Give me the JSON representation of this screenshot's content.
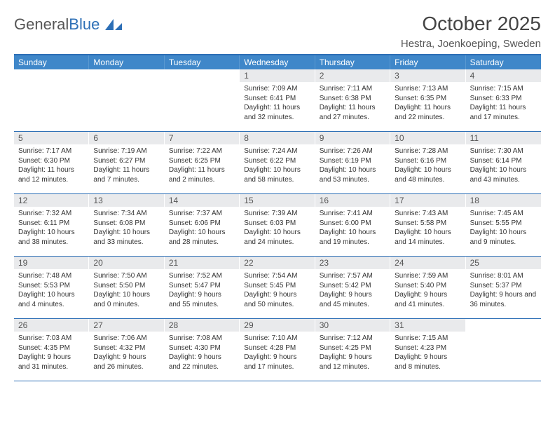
{
  "logo": {
    "text_general": "General",
    "text_blue": "Blue"
  },
  "title": "October 2025",
  "location": "Hestra, Joenkoeping, Sweden",
  "colors": {
    "header_bg": "#3f87c9",
    "header_border_top": "#2d6fb6",
    "week_border": "#2d6fb6",
    "daynum_bg": "#e9eaec",
    "text": "#333333"
  },
  "days_of_week": [
    "Sunday",
    "Monday",
    "Tuesday",
    "Wednesday",
    "Thursday",
    "Friday",
    "Saturday"
  ],
  "weeks": [
    [
      {
        "n": "",
        "sr": "",
        "ss": "",
        "dl": ""
      },
      {
        "n": "",
        "sr": "",
        "ss": "",
        "dl": ""
      },
      {
        "n": "",
        "sr": "",
        "ss": "",
        "dl": ""
      },
      {
        "n": "1",
        "sr": "Sunrise: 7:09 AM",
        "ss": "Sunset: 6:41 PM",
        "dl": "Daylight: 11 hours and 32 minutes."
      },
      {
        "n": "2",
        "sr": "Sunrise: 7:11 AM",
        "ss": "Sunset: 6:38 PM",
        "dl": "Daylight: 11 hours and 27 minutes."
      },
      {
        "n": "3",
        "sr": "Sunrise: 7:13 AM",
        "ss": "Sunset: 6:35 PM",
        "dl": "Daylight: 11 hours and 22 minutes."
      },
      {
        "n": "4",
        "sr": "Sunrise: 7:15 AM",
        "ss": "Sunset: 6:33 PM",
        "dl": "Daylight: 11 hours and 17 minutes."
      }
    ],
    [
      {
        "n": "5",
        "sr": "Sunrise: 7:17 AM",
        "ss": "Sunset: 6:30 PM",
        "dl": "Daylight: 11 hours and 12 minutes."
      },
      {
        "n": "6",
        "sr": "Sunrise: 7:19 AM",
        "ss": "Sunset: 6:27 PM",
        "dl": "Daylight: 11 hours and 7 minutes."
      },
      {
        "n": "7",
        "sr": "Sunrise: 7:22 AM",
        "ss": "Sunset: 6:25 PM",
        "dl": "Daylight: 11 hours and 2 minutes."
      },
      {
        "n": "8",
        "sr": "Sunrise: 7:24 AM",
        "ss": "Sunset: 6:22 PM",
        "dl": "Daylight: 10 hours and 58 minutes."
      },
      {
        "n": "9",
        "sr": "Sunrise: 7:26 AM",
        "ss": "Sunset: 6:19 PM",
        "dl": "Daylight: 10 hours and 53 minutes."
      },
      {
        "n": "10",
        "sr": "Sunrise: 7:28 AM",
        "ss": "Sunset: 6:16 PM",
        "dl": "Daylight: 10 hours and 48 minutes."
      },
      {
        "n": "11",
        "sr": "Sunrise: 7:30 AM",
        "ss": "Sunset: 6:14 PM",
        "dl": "Daylight: 10 hours and 43 minutes."
      }
    ],
    [
      {
        "n": "12",
        "sr": "Sunrise: 7:32 AM",
        "ss": "Sunset: 6:11 PM",
        "dl": "Daylight: 10 hours and 38 minutes."
      },
      {
        "n": "13",
        "sr": "Sunrise: 7:34 AM",
        "ss": "Sunset: 6:08 PM",
        "dl": "Daylight: 10 hours and 33 minutes."
      },
      {
        "n": "14",
        "sr": "Sunrise: 7:37 AM",
        "ss": "Sunset: 6:06 PM",
        "dl": "Daylight: 10 hours and 28 minutes."
      },
      {
        "n": "15",
        "sr": "Sunrise: 7:39 AM",
        "ss": "Sunset: 6:03 PM",
        "dl": "Daylight: 10 hours and 24 minutes."
      },
      {
        "n": "16",
        "sr": "Sunrise: 7:41 AM",
        "ss": "Sunset: 6:00 PM",
        "dl": "Daylight: 10 hours and 19 minutes."
      },
      {
        "n": "17",
        "sr": "Sunrise: 7:43 AM",
        "ss": "Sunset: 5:58 PM",
        "dl": "Daylight: 10 hours and 14 minutes."
      },
      {
        "n": "18",
        "sr": "Sunrise: 7:45 AM",
        "ss": "Sunset: 5:55 PM",
        "dl": "Daylight: 10 hours and 9 minutes."
      }
    ],
    [
      {
        "n": "19",
        "sr": "Sunrise: 7:48 AM",
        "ss": "Sunset: 5:53 PM",
        "dl": "Daylight: 10 hours and 4 minutes."
      },
      {
        "n": "20",
        "sr": "Sunrise: 7:50 AM",
        "ss": "Sunset: 5:50 PM",
        "dl": "Daylight: 10 hours and 0 minutes."
      },
      {
        "n": "21",
        "sr": "Sunrise: 7:52 AM",
        "ss": "Sunset: 5:47 PM",
        "dl": "Daylight: 9 hours and 55 minutes."
      },
      {
        "n": "22",
        "sr": "Sunrise: 7:54 AM",
        "ss": "Sunset: 5:45 PM",
        "dl": "Daylight: 9 hours and 50 minutes."
      },
      {
        "n": "23",
        "sr": "Sunrise: 7:57 AM",
        "ss": "Sunset: 5:42 PM",
        "dl": "Daylight: 9 hours and 45 minutes."
      },
      {
        "n": "24",
        "sr": "Sunrise: 7:59 AM",
        "ss": "Sunset: 5:40 PM",
        "dl": "Daylight: 9 hours and 41 minutes."
      },
      {
        "n": "25",
        "sr": "Sunrise: 8:01 AM",
        "ss": "Sunset: 5:37 PM",
        "dl": "Daylight: 9 hours and 36 minutes."
      }
    ],
    [
      {
        "n": "26",
        "sr": "Sunrise: 7:03 AM",
        "ss": "Sunset: 4:35 PM",
        "dl": "Daylight: 9 hours and 31 minutes."
      },
      {
        "n": "27",
        "sr": "Sunrise: 7:06 AM",
        "ss": "Sunset: 4:32 PM",
        "dl": "Daylight: 9 hours and 26 minutes."
      },
      {
        "n": "28",
        "sr": "Sunrise: 7:08 AM",
        "ss": "Sunset: 4:30 PM",
        "dl": "Daylight: 9 hours and 22 minutes."
      },
      {
        "n": "29",
        "sr": "Sunrise: 7:10 AM",
        "ss": "Sunset: 4:28 PM",
        "dl": "Daylight: 9 hours and 17 minutes."
      },
      {
        "n": "30",
        "sr": "Sunrise: 7:12 AM",
        "ss": "Sunset: 4:25 PM",
        "dl": "Daylight: 9 hours and 12 minutes."
      },
      {
        "n": "31",
        "sr": "Sunrise: 7:15 AM",
        "ss": "Sunset: 4:23 PM",
        "dl": "Daylight: 9 hours and 8 minutes."
      },
      {
        "n": "",
        "sr": "",
        "ss": "",
        "dl": ""
      }
    ]
  ]
}
